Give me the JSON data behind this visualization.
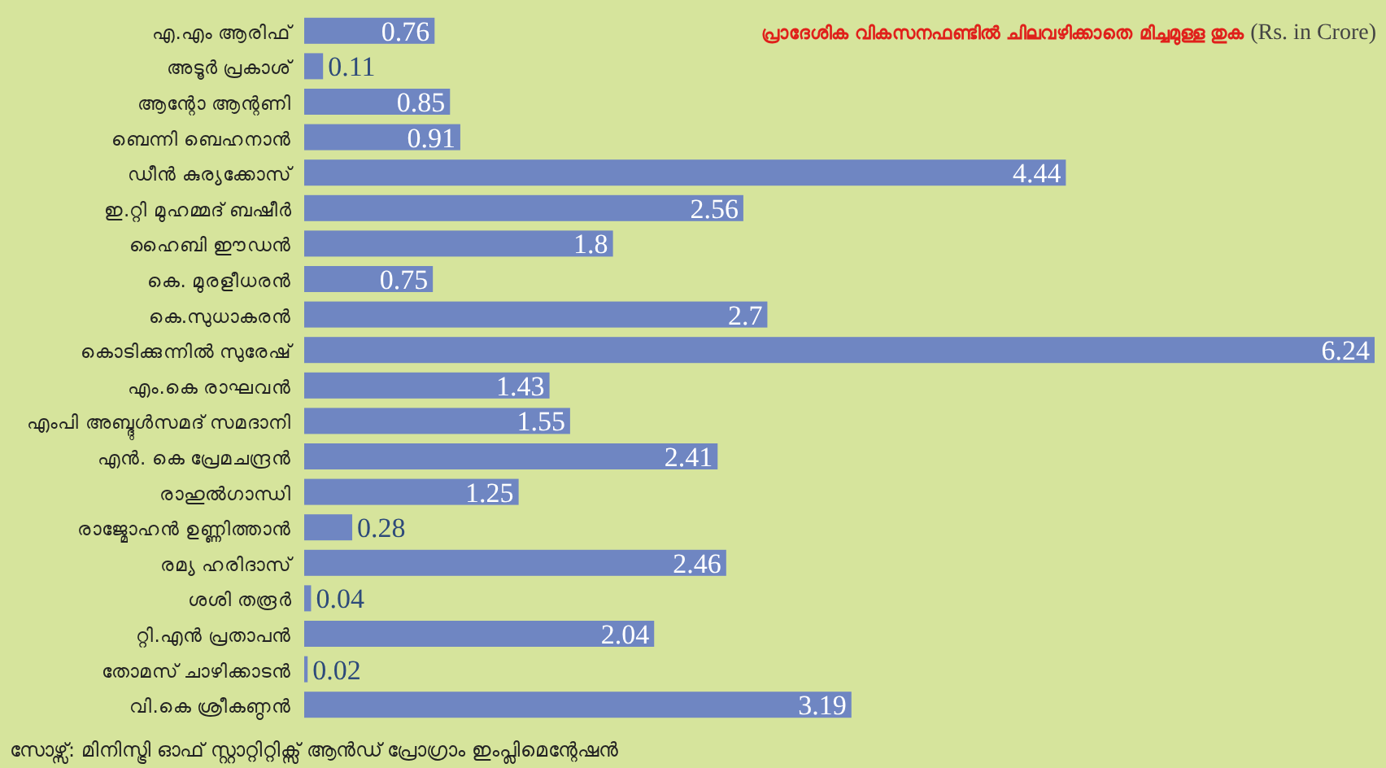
{
  "chart_data": {
    "type": "bar",
    "orientation": "horizontal",
    "title": "പ്രാദേശിക വികസനഫണ്ടിൽ ചിലവഴിക്കാതെ മിച്ചമുള്ള തുക",
    "subtitle": "(Rs. in Crore)",
    "categories": [
      "എ.എം ആരിഫ്",
      "അടൂർ പ്രകാശ്",
      "ആന്റോ ആന്റണി",
      "ബെന്നി ബെഹനാൻ",
      "ഡീൻ കുര്യക്കോസ്",
      "ഇ.റ്റി മുഹമ്മദ് ബഷീർ",
      "ഹൈബി ഈഡൻ",
      "കെ. മുരളീധരൻ",
      "കെ.സുധാകരൻ",
      "കൊടിക്കുന്നിൽ സുരേഷ്",
      "എം.കെ രാഘവൻ",
      "എംപി അബ്ദുൾസമദ് സമദാനി",
      "എൻ. കെ പ്രേമചന്ദ്രൻ",
      "രാഹുൽഗാന്ധി",
      "രാജ്മോഹൻ ഉണ്ണിത്താൻ",
      "രമ്യ ഹരിദാസ്",
      "ശശി തരൂർ",
      "റ്റി.എൻ പ്രതാപൻ",
      "തോമസ് ചാഴിക്കാടൻ",
      "വി.കെ ശ്രീകണ്ഠൻ"
    ],
    "values": [
      0.76,
      0.11,
      0.85,
      0.91,
      4.44,
      2.56,
      1.8,
      0.75,
      2.7,
      6.24,
      1.43,
      1.55,
      2.41,
      1.25,
      0.28,
      2.46,
      0.04,
      2.04,
      0.02,
      3.19
    ],
    "color": "#6f86c2",
    "data_labels": true,
    "annotations": [
      "സോഴ്സ്: മിനിസ്ട്രി ഓഫ് സ്റ്റാറ്റിറ്റിക്സ് ആൻഡ് പ്രോഗ്രാം ഇംപ്ലിമെന്റേഷൻ"
    ]
  }
}
